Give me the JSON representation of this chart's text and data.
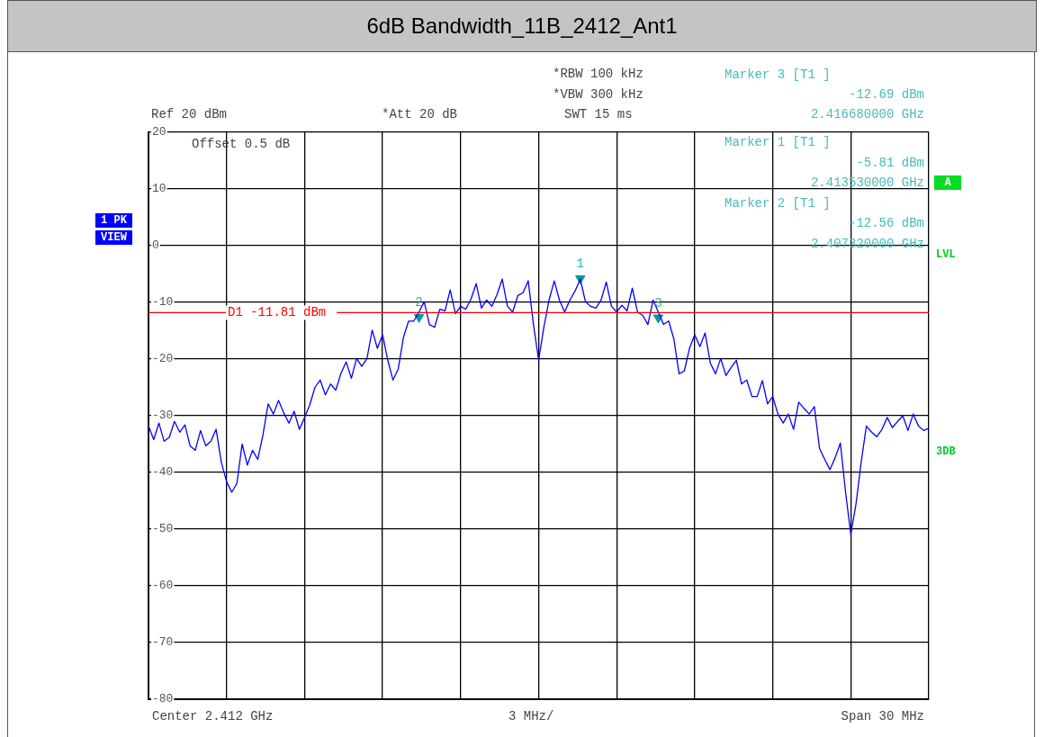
{
  "chart_data": {
    "type": "line",
    "title": "6dB Bandwidth_11B_2412_Ant1",
    "categories": [
      null,
      null,
      null,
      null,
      null,
      null,
      null,
      null,
      null,
      null,
      null,
      null,
      null,
      null,
      null,
      null,
      null,
      null,
      null,
      null,
      null,
      null,
      null,
      null,
      null,
      null,
      null,
      null,
      null,
      null,
      null,
      null,
      null,
      null,
      null,
      null,
      null,
      null,
      null,
      null,
      null,
      null,
      null,
      null,
      null,
      null,
      null,
      null,
      null,
      null,
      null,
      null,
      null,
      null,
      null,
      null,
      null,
      null,
      null,
      null,
      null,
      null,
      null,
      null,
      null,
      null,
      null,
      null,
      null,
      null,
      null,
      null,
      null,
      null,
      null,
      null,
      null,
      null,
      null,
      null,
      null,
      null,
      null,
      null,
      null,
      null,
      null,
      null,
      null,
      null,
      null,
      null,
      null,
      null,
      null,
      null,
      null,
      null,
      null,
      null,
      null,
      null,
      null,
      null,
      null,
      null,
      null,
      null,
      null,
      null,
      null,
      null,
      null,
      null,
      null,
      null,
      null,
      null,
      null,
      null,
      null,
      null,
      null,
      null,
      null,
      null,
      null,
      null,
      null,
      null,
      null,
      null,
      null,
      null,
      null,
      null,
      null,
      null,
      null,
      null,
      null,
      null,
      null,
      null,
      null,
      null,
      null,
      null,
      null,
      null,
      null
    ],
    "ylim": [
      -80,
      20
    ],
    "yticks": [
      -80,
      -70,
      -60,
      -50,
      -40,
      -30,
      -20,
      -10,
      0,
      10,
      20
    ],
    "grid": true,
    "tick_labels": "y",
    "series": [
      {
        "color": "#0000ff",
        "marker": "none",
        "values": [
          -31.8,
          -34.2,
          -31.3,
          -34.5,
          -33.8,
          -31.0,
          -32.9,
          -31.6,
          -35.3,
          -36.1,
          -32.6,
          -35.3,
          -34.5,
          -32.4,
          -38.2,
          -41.6,
          -43.5,
          -41.9,
          -35.0,
          -38.7,
          -36.1,
          -37.7,
          -33.4,
          -27.9,
          -29.7,
          -27.3,
          -29.5,
          -31.3,
          -29.2,
          -32.4,
          -30.3,
          -28.1,
          -25.0,
          -23.7,
          -26.3,
          -24.4,
          -25.5,
          -22.5,
          -20.5,
          -23.4,
          -19.9,
          -21.3,
          -19.9,
          -14.9,
          -18.1,
          -15.7,
          -20.2,
          -23.7,
          -21.8,
          -16.2,
          -13.3,
          -13.3,
          -11.7,
          -9.9,
          -13.9,
          -14.4,
          -11.2,
          -11.5,
          -7.8,
          -12.0,
          -10.7,
          -11.2,
          -9.4,
          -6.7,
          -11.0,
          -9.6,
          -10.7,
          -8.6,
          -5.9,
          -10.7,
          -11.7,
          -8.8,
          -8.3,
          -6.2,
          -13.9,
          -20.2,
          -14.4,
          -9.6,
          -6.2,
          -9.6,
          -11.7,
          -9.6,
          -8.0,
          -5.9,
          -9.9,
          -10.7,
          -11.0,
          -9.6,
          -6.4,
          -10.7,
          -11.7,
          -10.5,
          -11.5,
          -7.5,
          -11.7,
          -12.3,
          -13.9,
          -9.6,
          -11.7,
          -13.9,
          -13.3,
          -16.5,
          -22.6,
          -22.1,
          -18.1,
          -15.7,
          -17.8,
          -15.4,
          -20.7,
          -22.6,
          -19.9,
          -22.9,
          -21.5,
          -20.2,
          -24.4,
          -23.7,
          -26.6,
          -26.6,
          -23.8,
          -27.9,
          -26.6,
          -29.7,
          -31.3,
          -29.7,
          -32.4,
          -27.6,
          -28.7,
          -29.7,
          -28.4,
          -35.8,
          -37.7,
          -39.5,
          -37.4,
          -34.8,
          -43.5,
          -50.9,
          -45.6,
          -38.2,
          -31.8,
          -32.9,
          -33.7,
          -32.4,
          -30.3,
          -32.1,
          -31.0,
          -30.0,
          -32.6,
          -29.7,
          -31.8,
          -32.6,
          -32.2
        ]
      },
      {
        "type": "scatter",
        "color": "#009999",
        "marker": "triangle",
        "values": [
          null,
          null,
          null,
          null,
          null,
          null,
          null,
          null,
          null,
          null,
          null,
          null,
          null,
          null,
          null,
          null,
          null,
          null,
          null,
          null,
          null,
          null,
          null,
          null,
          null,
          null,
          null,
          null,
          null,
          null,
          null,
          null,
          null,
          null,
          null,
          null,
          null,
          null,
          null,
          null,
          null,
          null,
          null,
          null,
          null,
          null,
          null,
          null,
          null,
          null,
          null,
          null,
          -12.6,
          null,
          null,
          null,
          null,
          null,
          null,
          null,
          null,
          null,
          null,
          null,
          null,
          null,
          null,
          null,
          null,
          null,
          null,
          null,
          null,
          null,
          null,
          null,
          null,
          null,
          null,
          null,
          null,
          null,
          null,
          -5.8,
          null,
          null,
          null,
          null,
          null,
          null,
          null,
          null,
          null,
          null,
          null,
          null,
          null,
          null,
          -12.7,
          null,
          null,
          null,
          null,
          null,
          null,
          null,
          null,
          null,
          null,
          null,
          null,
          null,
          null,
          null,
          null,
          null,
          null,
          null,
          null,
          null,
          null,
          null,
          null,
          null,
          null,
          null,
          null,
          null,
          null,
          null,
          null,
          null,
          null,
          null,
          null,
          null,
          null,
          null,
          null,
          null,
          null,
          null,
          null,
          null,
          null,
          null,
          null,
          null,
          null,
          null,
          null
        ]
      }
    ],
    "ref_lines": [
      {
        "axis": "y",
        "value": -11.81,
        "label": "D1 -11.81 dBm",
        "color": "#ff0000"
      }
    ],
    "annotations": [
      "Ref 20 dBm",
      "*Att 20 dB",
      "*RBW 100 kHz",
      "*VBW 300 kHz",
      "SWT 15 ms",
      "Offset 0.5 dB",
      "Marker 3 [T1 ]",
      "-12.69 dBm",
      "2.416680000 GHz",
      "Marker 1 [T1 ]",
      "-5.81 dBm",
      "2.413530000 GHz",
      "Marker 2 [T1 ]",
      "-12.56 dBm",
      "2.407320000 GHz",
      "1 PK",
      "VIEW",
      "A",
      "LVL",
      "3DB",
      "Center 2.412 GHz",
      "3 MHz/",
      "Span 30 MHz",
      {
        "text": "1",
        "y": -5.8
      },
      {
        "text": "2",
        "y": -12.6
      },
      {
        "text": "3",
        "y": -12.7
      }
    ]
  }
}
